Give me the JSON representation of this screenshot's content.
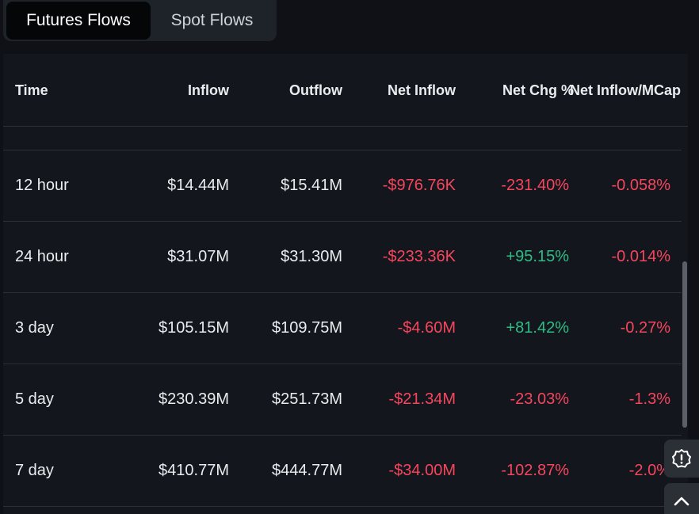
{
  "tabs": [
    {
      "label": "Futures Flows",
      "active": true
    },
    {
      "label": "Spot Flows",
      "active": false
    }
  ],
  "columns": [
    "Time",
    "Inflow",
    "Outflow",
    "Net Inflow",
    "Net Chg %",
    "Net Inflow/MCap"
  ],
  "rows": [
    {
      "time": "12 hour",
      "inflow": "$14.44M",
      "outflow": "$15.41M",
      "net_inflow": "-$976.76K",
      "net_chg": "-231.40%",
      "net_mcap": "-0.058%"
    },
    {
      "time": "24 hour",
      "inflow": "$31.07M",
      "outflow": "$31.30M",
      "net_inflow": "-$233.36K",
      "net_chg": "+95.15%",
      "net_mcap": "-0.014%"
    },
    {
      "time": "3 day",
      "inflow": "$105.15M",
      "outflow": "$109.75M",
      "net_inflow": "-$4.60M",
      "net_chg": "+81.42%",
      "net_mcap": "-0.27%"
    },
    {
      "time": "5 day",
      "inflow": "$230.39M",
      "outflow": "$251.73M",
      "net_inflow": "-$21.34M",
      "net_chg": "-23.03%",
      "net_mcap": "-1.3%"
    },
    {
      "time": "7 day",
      "inflow": "$410.77M",
      "outflow": "$444.77M",
      "net_inflow": "-$34.00M",
      "net_chg": "-102.87%",
      "net_mcap": "-2.0%"
    }
  ],
  "colors": {
    "negative": "#f6465d",
    "positive": "#2ebd85"
  },
  "icons": {
    "feedback": "alert-gear-icon",
    "scroll_top": "chevron-up-icon"
  }
}
